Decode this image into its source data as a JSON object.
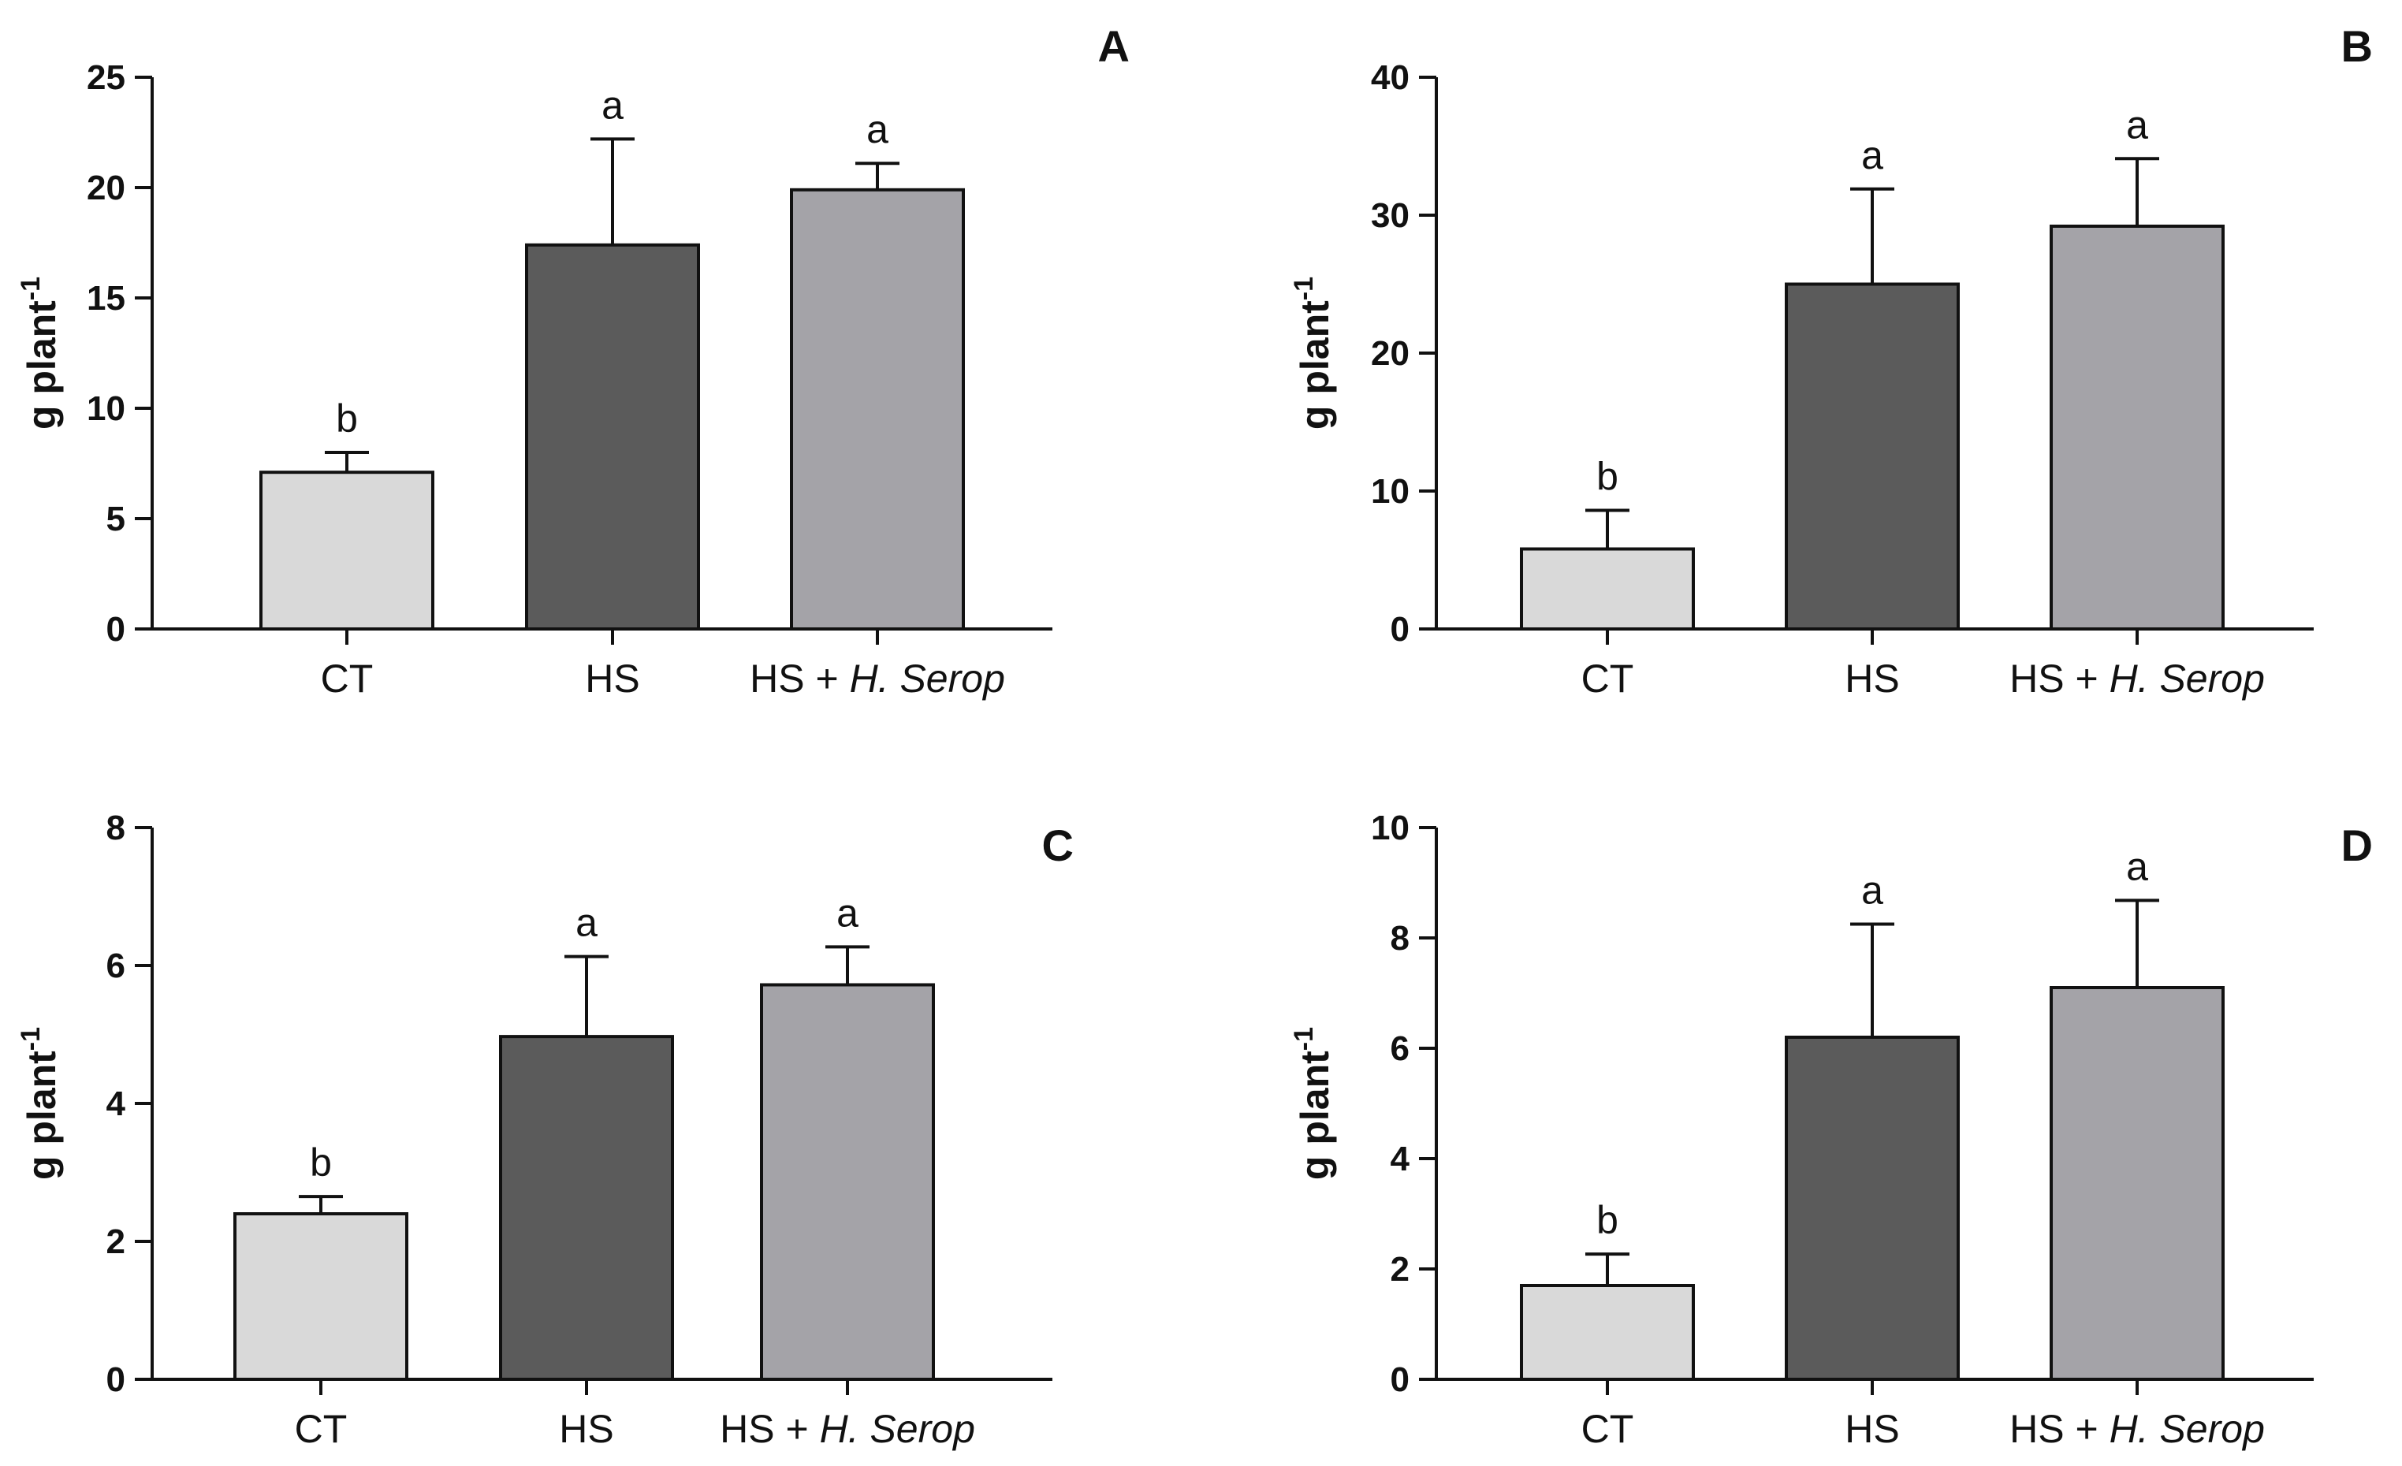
{
  "figure": {
    "colors": {
      "CT": "#d9d9d9",
      "HS": "#5b5b5b",
      "HS + H. Serop": "#a4a3a8",
      "axis": "#111111"
    }
  },
  "chart_data": [
    {
      "panel": "A",
      "type": "bar",
      "categories": [
        "CT",
        "HS",
        "HS + H. Serop"
      ],
      "category_parts": [
        {
          "plain": "CT",
          "italic": ""
        },
        {
          "plain": "HS",
          "italic": ""
        },
        {
          "plain": "HS + ",
          "italic": "H. Serop"
        }
      ],
      "values": [
        7.1,
        17.4,
        19.9
      ],
      "errors": [
        0.9,
        4.8,
        1.2
      ],
      "significance": [
        "b",
        "a",
        "a"
      ],
      "ylabel": "g plant",
      "ylabel_superscript": "-1",
      "ylim": [
        0,
        25
      ],
      "yticks": [
        0,
        5,
        10,
        15,
        20,
        25
      ],
      "grid": false
    },
    {
      "panel": "B",
      "type": "bar",
      "categories": [
        "CT",
        "HS",
        "HS + H. Serop"
      ],
      "category_parts": [
        {
          "plain": "CT",
          "italic": ""
        },
        {
          "plain": "HS",
          "italic": ""
        },
        {
          "plain": "HS + ",
          "italic": "H. Serop"
        }
      ],
      "values": [
        5.8,
        25.0,
        29.2
      ],
      "errors": [
        2.8,
        6.9,
        4.9
      ],
      "significance": [
        "b",
        "a",
        "a"
      ],
      "ylabel": "g plant",
      "ylabel_superscript": "-1",
      "ylim": [
        0,
        40
      ],
      "yticks": [
        0,
        10,
        20,
        30,
        40
      ],
      "grid": false
    },
    {
      "panel": "C",
      "type": "bar",
      "categories": [
        "CT",
        "HS",
        "HS + H. Serop"
      ],
      "category_parts": [
        {
          "plain": "CT",
          "italic": ""
        },
        {
          "plain": "HS",
          "italic": ""
        },
        {
          "plain": "HS + ",
          "italic": "H. Serop"
        }
      ],
      "values": [
        2.4,
        4.97,
        5.72
      ],
      "errors": [
        0.25,
        1.16,
        0.55
      ],
      "significance": [
        "b",
        "a",
        "a"
      ],
      "ylabel": "g plant",
      "ylabel_superscript": "-1",
      "ylim": [
        0,
        8
      ],
      "yticks": [
        0,
        2,
        4,
        6,
        8
      ],
      "grid": false
    },
    {
      "panel": "D",
      "type": "bar",
      "categories": [
        "CT",
        "HS",
        "HS + H. Serop"
      ],
      "category_parts": [
        {
          "plain": "CT",
          "italic": ""
        },
        {
          "plain": "HS",
          "italic": ""
        },
        {
          "plain": "HS + ",
          "italic": "H. Serop"
        }
      ],
      "values": [
        1.7,
        6.2,
        7.1
      ],
      "errors": [
        0.57,
        2.05,
        1.58
      ],
      "significance": [
        "b",
        "a",
        "a"
      ],
      "ylabel": "g plant",
      "ylabel_superscript": "-1",
      "ylim": [
        0,
        10
      ],
      "yticks": [
        0,
        2,
        4,
        6,
        8,
        10
      ],
      "grid": false
    }
  ]
}
